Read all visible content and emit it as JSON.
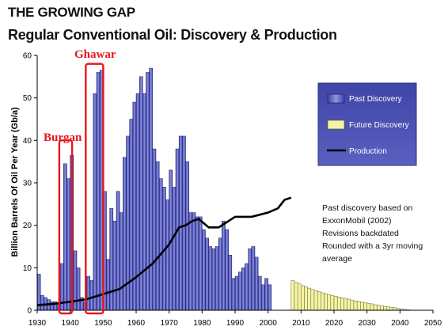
{
  "chart_data": {
    "type": "bar",
    "title": "THE GROWING GAP",
    "subtitle": "Regular Conventional Oil: Discovery & Production",
    "ylabel": "Billion Barrels Of Oil Per Year (Gb/a)",
    "xlabel": "",
    "xlim": [
      1930,
      2050
    ],
    "ylim": [
      0,
      60
    ],
    "x_ticks": [
      "1930",
      "1940",
      "1950",
      "1960",
      "1970",
      "1980",
      "1990",
      "2000",
      "2010",
      "2020",
      "2030",
      "2040",
      "2050"
    ],
    "y_ticks": [
      "0",
      "10",
      "20",
      "30",
      "40",
      "50",
      "60"
    ],
    "colors": {
      "past": "#5a5fc8",
      "future": "#f4f4a6",
      "production": "#000000",
      "callout": "#e8141c",
      "legend_bg": "#4a4fb0"
    },
    "past_discovery": {
      "name": "Past Discovery",
      "start_year": 1930,
      "values": [
        8.5,
        3.5,
        3,
        2.5,
        2,
        2,
        1.5,
        11,
        34.5,
        31,
        36.5,
        14,
        10,
        3,
        2,
        8,
        7,
        51,
        56,
        56.5,
        28,
        12,
        24,
        21,
        28,
        23,
        36,
        41,
        45,
        49,
        51,
        55,
        51,
        56,
        57,
        38,
        35,
        31,
        29,
        26,
        33,
        29,
        38,
        41,
        41,
        35,
        23,
        23,
        22,
        22,
        19,
        17,
        15,
        14.5,
        15,
        17,
        21,
        19,
        13,
        7.5,
        8,
        9,
        10,
        11,
        14.5,
        15,
        12.5,
        8,
        6,
        7.5,
        6
      ]
    },
    "future_discovery": {
      "name": "Future Discovery",
      "start_year": 2007,
      "values": [
        7,
        6.6,
        6.2,
        5.8,
        5.5,
        5.2,
        4.9,
        4.6,
        4.4,
        4.1,
        3.9,
        3.7,
        3.5,
        3.3,
        3.1,
        2.9,
        2.8,
        2.6,
        2.4,
        2.2,
        2.1,
        1.9,
        1.8,
        1.6,
        1.5,
        1.3,
        1.2,
        1,
        0.9,
        0.8,
        0.7,
        0.6,
        0.4,
        0.3,
        0.2,
        0.1
      ]
    },
    "production": {
      "name": "Production",
      "x": [
        1930,
        1935,
        1940,
        1945,
        1950,
        1955,
        1960,
        1965,
        1970,
        1973,
        1975,
        1977,
        1979,
        1982,
        1985,
        1990,
        1995,
        2000,
        2003,
        2005,
        2007
      ],
      "y": [
        1.2,
        1.5,
        2,
        2.6,
        3.8,
        5,
        7.8,
        11,
        15.5,
        19.5,
        20,
        21,
        21.5,
        19.5,
        19.5,
        22,
        22,
        23,
        24,
        26,
        26.5
      ]
    },
    "legend": {
      "placement": "right",
      "entries": [
        "Past Discovery",
        "Future Discovery",
        "Production"
      ]
    },
    "annotations": {
      "burgan": "Burgan",
      "ghawar": "Ghawar",
      "note_lines": [
        "Past discovery based on",
        "ExxonMobil (2002)",
        "Revisions backdated",
        "Rounded with a 3yr moving",
        "average"
      ]
    },
    "highlight_ranges": [
      {
        "label": "Burgan",
        "x": [
          1936.7,
          1940.6
        ],
        "y": [
          0,
          40
        ]
      },
      {
        "label": "Ghawar",
        "x": [
          1944.7,
          1950
        ],
        "y": [
          0,
          58
        ]
      }
    ],
    "grid": false
  }
}
